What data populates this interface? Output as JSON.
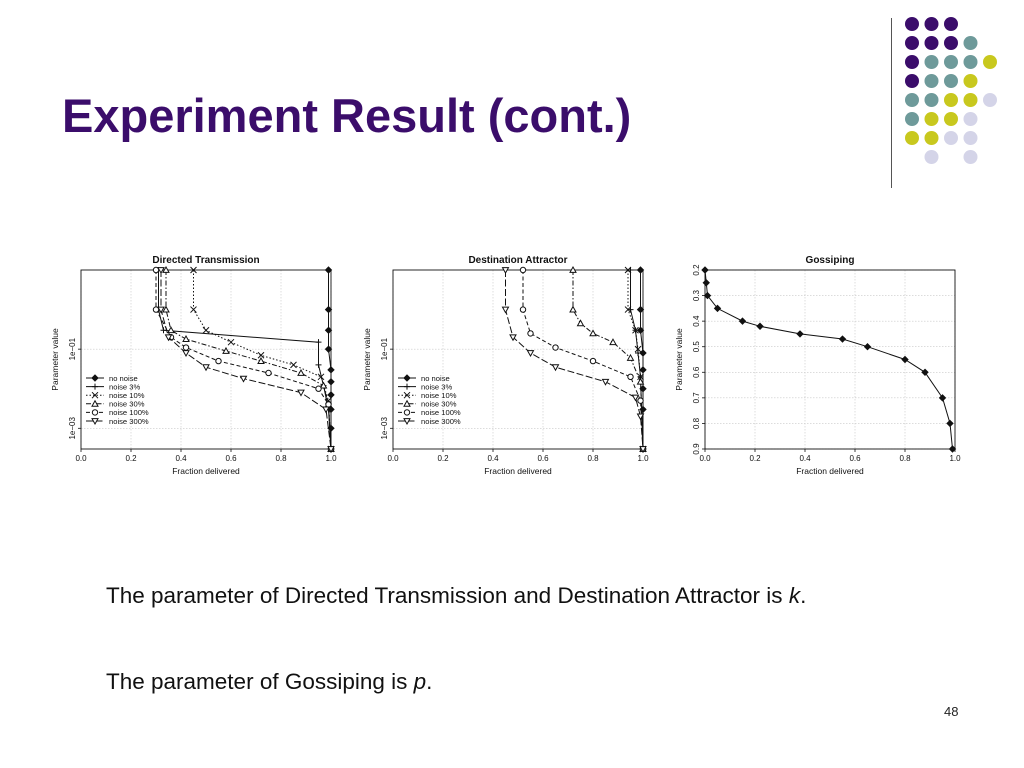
{
  "slide": {
    "title": "Experiment Result (cont.)",
    "paragraph_1": {
      "prefix": "The parameter of  Directed Transmission and Destination Attractor is ",
      "var": "k",
      "suffix": "."
    },
    "paragraph_2": {
      "prefix": "The parameter of Gossiping is ",
      "var": "p",
      "suffix": "."
    },
    "slide_number": "48",
    "colors": {
      "title": "#3b0d6b",
      "purple": "#3b0d6b",
      "teal": "#6e9a9a",
      "yellow": "#c8c81e",
      "lavender": "#d4d4e8"
    }
  },
  "decoration": {
    "dot_grid": [
      [
        "purple",
        "purple",
        "purple",
        "",
        ""
      ],
      [
        "purple",
        "purple",
        "purple",
        "teal",
        ""
      ],
      [
        "purple",
        "teal",
        "teal",
        "teal",
        "yellow"
      ],
      [
        "purple",
        "teal",
        "teal",
        "yellow",
        ""
      ],
      [
        "teal",
        "teal",
        "yellow",
        "yellow",
        "lavender"
      ],
      [
        "teal",
        "yellow",
        "yellow",
        "lavender",
        ""
      ],
      [
        "yellow",
        "yellow",
        "lavender",
        "lavender",
        ""
      ],
      [
        "",
        "lavender",
        "",
        "lavender",
        ""
      ]
    ]
  },
  "chart_data": [
    {
      "type": "line",
      "title": "Directed Transmission",
      "xlabel": "Fraction delivered",
      "ylabel": "Parameter value",
      "xlim": [
        0,
        1
      ],
      "x_ticks": [
        0.0,
        0.2,
        0.4,
        0.6,
        0.8,
        1.0
      ],
      "y_scale": "log",
      "ylim": [
        0.0003,
        10
      ],
      "y_ticks": [
        0.001,
        0.1
      ],
      "y_tick_labels": [
        "1e−03",
        "1e−01"
      ],
      "grid": true,
      "legend_position": "bottom-left",
      "series": [
        {
          "name": "no noise",
          "marker": "diamond",
          "dash": "solid",
          "x": [
            0.99,
            0.99,
            0.99,
            0.99,
            1.0,
            1.0,
            1.0,
            1.0,
            1.0,
            1.0
          ],
          "y": [
            10,
            1,
            0.3,
            0.1,
            0.03,
            0.015,
            0.007,
            0.003,
            0.001,
            0.0003
          ]
        },
        {
          "name": "noise 3%",
          "marker": "plus",
          "dash": "solid",
          "x": [
            0.31,
            0.31,
            0.33,
            0.95,
            0.95,
            0.97,
            0.99,
            1.0
          ],
          "y": [
            10,
            1,
            0.3,
            0.15,
            0.04,
            0.012,
            0.003,
            0.0003
          ]
        },
        {
          "name": "noise 10%",
          "marker": "x",
          "dash": "dotted",
          "x": [
            0.45,
            0.45,
            0.5,
            0.6,
            0.72,
            0.85,
            0.96,
            0.99,
            1.0
          ],
          "y": [
            10,
            1,
            0.3,
            0.15,
            0.07,
            0.04,
            0.02,
            0.005,
            0.0003
          ]
        },
        {
          "name": "noise 30%",
          "marker": "triangle-up",
          "dash": "dashdot",
          "x": [
            0.34,
            0.34,
            0.36,
            0.42,
            0.58,
            0.72,
            0.88,
            0.97,
            0.99,
            1.0
          ],
          "y": [
            10,
            1,
            0.3,
            0.18,
            0.09,
            0.05,
            0.025,
            0.012,
            0.004,
            0.0003
          ]
        },
        {
          "name": "noise 100%",
          "marker": "circle",
          "dash": "dashed",
          "x": [
            0.3,
            0.3,
            0.36,
            0.42,
            0.55,
            0.75,
            0.95,
            0.99,
            1.0
          ],
          "y": [
            10,
            1,
            0.2,
            0.11,
            0.05,
            0.025,
            0.01,
            0.004,
            0.0003
          ]
        },
        {
          "name": "noise 300%",
          "marker": "triangle-down",
          "dash": "longdash",
          "x": [
            0.32,
            0.32,
            0.35,
            0.42,
            0.5,
            0.65,
            0.88,
            0.98,
            1.0
          ],
          "y": [
            10,
            1,
            0.2,
            0.08,
            0.035,
            0.018,
            0.008,
            0.003,
            0.0003
          ]
        }
      ]
    },
    {
      "type": "line",
      "title": "Destination Attractor",
      "xlabel": "Fraction delivered",
      "ylabel": "Parameter value",
      "xlim": [
        0,
        1
      ],
      "x_ticks": [
        0.0,
        0.2,
        0.4,
        0.6,
        0.8,
        1.0
      ],
      "y_scale": "log",
      "ylim": [
        0.0003,
        10
      ],
      "y_ticks": [
        0.001,
        0.1
      ],
      "y_tick_labels": [
        "1e−03",
        "1e−01"
      ],
      "grid": true,
      "legend_position": "bottom-left",
      "series": [
        {
          "name": "no noise",
          "marker": "diamond",
          "dash": "solid",
          "x": [
            0.99,
            0.99,
            0.99,
            1.0,
            1.0,
            1.0,
            1.0,
            1.0
          ],
          "y": [
            10,
            1,
            0.3,
            0.08,
            0.03,
            0.01,
            0.003,
            0.0003
          ]
        },
        {
          "name": "noise 3%",
          "marker": "plus",
          "dash": "solid",
          "x": [
            0.95,
            0.95,
            0.97,
            0.98,
            0.99,
            1.0
          ],
          "y": [
            10,
            1,
            0.3,
            0.08,
            0.02,
            0.0003
          ]
        },
        {
          "name": "noise 10%",
          "marker": "x",
          "dash": "dotted",
          "x": [
            0.94,
            0.94,
            0.97,
            0.98,
            0.99,
            1.0
          ],
          "y": [
            10,
            1,
            0.3,
            0.1,
            0.02,
            0.0003
          ]
        },
        {
          "name": "noise 30%",
          "marker": "triangle-up",
          "dash": "dashdot",
          "x": [
            0.72,
            0.72,
            0.75,
            0.8,
            0.88,
            0.95,
            0.99,
            1.0
          ],
          "y": [
            10,
            1,
            0.45,
            0.25,
            0.15,
            0.06,
            0.015,
            0.0003
          ]
        },
        {
          "name": "noise 100%",
          "marker": "circle",
          "dash": "dashed",
          "x": [
            0.52,
            0.52,
            0.55,
            0.65,
            0.8,
            0.95,
            0.99,
            1.0
          ],
          "y": [
            10,
            1,
            0.25,
            0.11,
            0.05,
            0.02,
            0.005,
            0.0003
          ]
        },
        {
          "name": "noise 300%",
          "marker": "triangle-down",
          "dash": "longdash",
          "x": [
            0.45,
            0.45,
            0.48,
            0.55,
            0.65,
            0.85,
            0.97,
            0.99,
            1.0
          ],
          "y": [
            10,
            1,
            0.2,
            0.08,
            0.035,
            0.015,
            0.006,
            0.002,
            0.0003
          ]
        }
      ]
    },
    {
      "type": "line",
      "title": "Gossiping",
      "xlabel": "Fraction delivered",
      "ylabel": "Parameter value",
      "xlim": [
        0,
        1
      ],
      "x_ticks": [
        0.0,
        0.2,
        0.4,
        0.6,
        0.8,
        1.0
      ],
      "y_scale": "linear",
      "y_reversed": true,
      "ylim": [
        0.2,
        0.9
      ],
      "y_ticks": [
        0.2,
        0.3,
        0.4,
        0.5,
        0.6,
        0.7,
        0.8,
        0.9
      ],
      "grid": true,
      "series": [
        {
          "name": "",
          "marker": "diamond",
          "dash": "solid",
          "x": [
            0.0,
            0.005,
            0.01,
            0.05,
            0.15,
            0.22,
            0.38,
            0.55,
            0.65,
            0.8,
            0.88,
            0.95,
            0.98,
            0.99
          ],
          "y": [
            0.2,
            0.25,
            0.3,
            0.35,
            0.4,
            0.42,
            0.45,
            0.47,
            0.5,
            0.55,
            0.6,
            0.7,
            0.8,
            0.9
          ]
        }
      ]
    }
  ]
}
